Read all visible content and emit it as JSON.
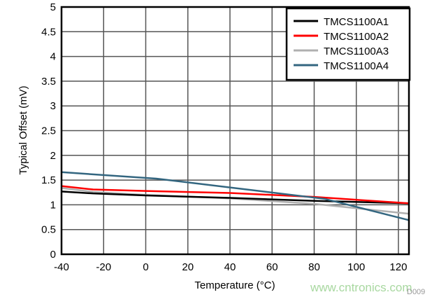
{
  "chart_data": {
    "type": "line",
    "title": "",
    "xlabel": "Temperature (°C)",
    "ylabel": "Typical Offset (mV)",
    "xlim": [
      -40,
      125
    ],
    "ylim": [
      0,
      5
    ],
    "xticks": [
      -40,
      -20,
      0,
      20,
      40,
      60,
      80,
      100,
      120
    ],
    "yticks": [
      0,
      0.5,
      1,
      1.5,
      2,
      2.5,
      3,
      3.5,
      4,
      4.5,
      5
    ],
    "grid": true,
    "legend_position": "top-right",
    "series": [
      {
        "name": "TMCS1100A1",
        "color": "#000000",
        "x": [
          -40,
          -25,
          0,
          40,
          80,
          125
        ],
        "y": [
          1.27,
          1.23,
          1.19,
          1.14,
          1.08,
          1.03
        ]
      },
      {
        "name": "TMCS1100A2",
        "color": "#ff0000",
        "x": [
          -40,
          -25,
          0,
          40,
          80,
          125
        ],
        "y": [
          1.38,
          1.31,
          1.28,
          1.24,
          1.16,
          1.03
        ]
      },
      {
        "name": "TMCS1100A3",
        "color": "#b0b0b0",
        "x": [
          -40,
          -25,
          0,
          40,
          80,
          125
        ],
        "y": [
          1.34,
          1.26,
          1.2,
          1.13,
          1.02,
          0.82
        ]
      },
      {
        "name": "TMCS1100A4",
        "color": "#336680",
        "x": [
          -40,
          5,
          85,
          125
        ],
        "y": [
          1.66,
          1.53,
          1.12,
          0.69
        ]
      }
    ]
  },
  "watermark": "www.cntronics.com",
  "figure_id": "D009"
}
